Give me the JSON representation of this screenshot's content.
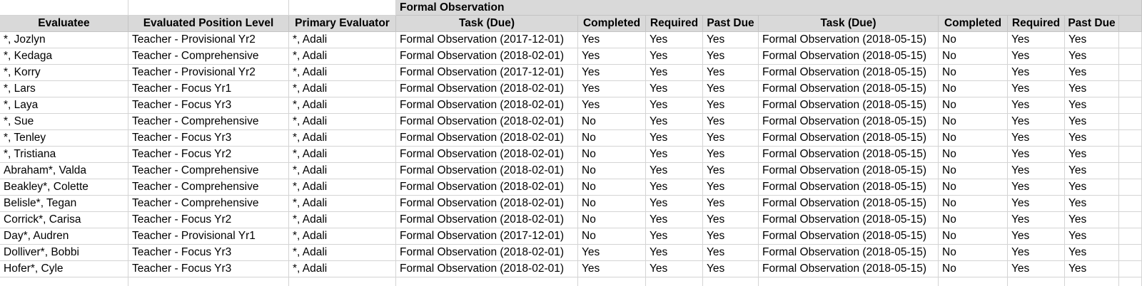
{
  "sheet": {
    "group_header": "Formal Observation",
    "columns": [
      "Evaluatee",
      "Evaluated Position Level",
      "Primary Evaluator",
      "Task (Due)",
      "Completed",
      "Required",
      "Past Due",
      "Task (Due)",
      "Completed",
      "Required",
      "Past Due"
    ],
    "rows": [
      [
        "*, Jozlyn",
        "Teacher - Provisional Yr2",
        "*, Adali",
        "Formal Observation (2017-12-01)",
        "Yes",
        "Yes",
        "Yes",
        "Formal Observation (2018-05-15)",
        "No",
        "Yes",
        "Yes"
      ],
      [
        "*, Kedaga",
        "Teacher - Comprehensive",
        "*, Adali",
        "Formal Observation (2018-02-01)",
        "Yes",
        "Yes",
        "Yes",
        "Formal Observation (2018-05-15)",
        "No",
        "Yes",
        "Yes"
      ],
      [
        "*, Korry",
        "Teacher - Provisional Yr2",
        "*, Adali",
        "Formal Observation (2017-12-01)",
        "Yes",
        "Yes",
        "Yes",
        "Formal Observation (2018-05-15)",
        "No",
        "Yes",
        "Yes"
      ],
      [
        "*, Lars",
        "Teacher - Focus Yr1",
        "*, Adali",
        "Formal Observation (2018-02-01)",
        "Yes",
        "Yes",
        "Yes",
        "Formal Observation (2018-05-15)",
        "No",
        "Yes",
        "Yes"
      ],
      [
        "*, Laya",
        "Teacher - Focus Yr3",
        "*, Adali",
        "Formal Observation (2018-02-01)",
        "Yes",
        "Yes",
        "Yes",
        "Formal Observation (2018-05-15)",
        "No",
        "Yes",
        "Yes"
      ],
      [
        "*, Sue",
        "Teacher - Comprehensive",
        "*, Adali",
        "Formal Observation (2018-02-01)",
        "No",
        "Yes",
        "Yes",
        "Formal Observation (2018-05-15)",
        "No",
        "Yes",
        "Yes"
      ],
      [
        "*, Tenley",
        "Teacher - Focus Yr3",
        "*, Adali",
        "Formal Observation (2018-02-01)",
        "No",
        "Yes",
        "Yes",
        "Formal Observation (2018-05-15)",
        "No",
        "Yes",
        "Yes"
      ],
      [
        "*, Tristiana",
        "Teacher - Focus Yr2",
        "*, Adali",
        "Formal Observation (2018-02-01)",
        "No",
        "Yes",
        "Yes",
        "Formal Observation (2018-05-15)",
        "No",
        "Yes",
        "Yes"
      ],
      [
        "Abraham*, Valda",
        "Teacher - Comprehensive",
        "*, Adali",
        "Formal Observation (2018-02-01)",
        "No",
        "Yes",
        "Yes",
        "Formal Observation (2018-05-15)",
        "No",
        "Yes",
        "Yes"
      ],
      [
        "Beakley*, Colette",
        "Teacher - Comprehensive",
        "*, Adali",
        "Formal Observation (2018-02-01)",
        "No",
        "Yes",
        "Yes",
        "Formal Observation (2018-05-15)",
        "No",
        "Yes",
        "Yes"
      ],
      [
        "Belisle*, Tegan",
        "Teacher - Comprehensive",
        "*, Adali",
        "Formal Observation (2018-02-01)",
        "No",
        "Yes",
        "Yes",
        "Formal Observation (2018-05-15)",
        "No",
        "Yes",
        "Yes"
      ],
      [
        "Corrick*, Carisa",
        "Teacher - Focus Yr2",
        "*, Adali",
        "Formal Observation (2018-02-01)",
        "No",
        "Yes",
        "Yes",
        "Formal Observation (2018-05-15)",
        "No",
        "Yes",
        "Yes"
      ],
      [
        "Day*, Audren",
        "Teacher - Provisional Yr1",
        "*, Adali",
        "Formal Observation (2017-12-01)",
        "No",
        "Yes",
        "Yes",
        "Formal Observation (2018-05-15)",
        "No",
        "Yes",
        "Yes"
      ],
      [
        "Dolliver*, Bobbi",
        "Teacher - Focus Yr3",
        "*, Adali",
        "Formal Observation (2018-02-01)",
        "Yes",
        "Yes",
        "Yes",
        "Formal Observation (2018-05-15)",
        "No",
        "Yes",
        "Yes"
      ],
      [
        "Hofer*, Cyle",
        "Teacher - Focus Yr3",
        "*, Adali",
        "Formal Observation (2018-02-01)",
        "Yes",
        "Yes",
        "Yes",
        "Formal Observation (2018-05-15)",
        "No",
        "Yes",
        "Yes"
      ]
    ]
  }
}
